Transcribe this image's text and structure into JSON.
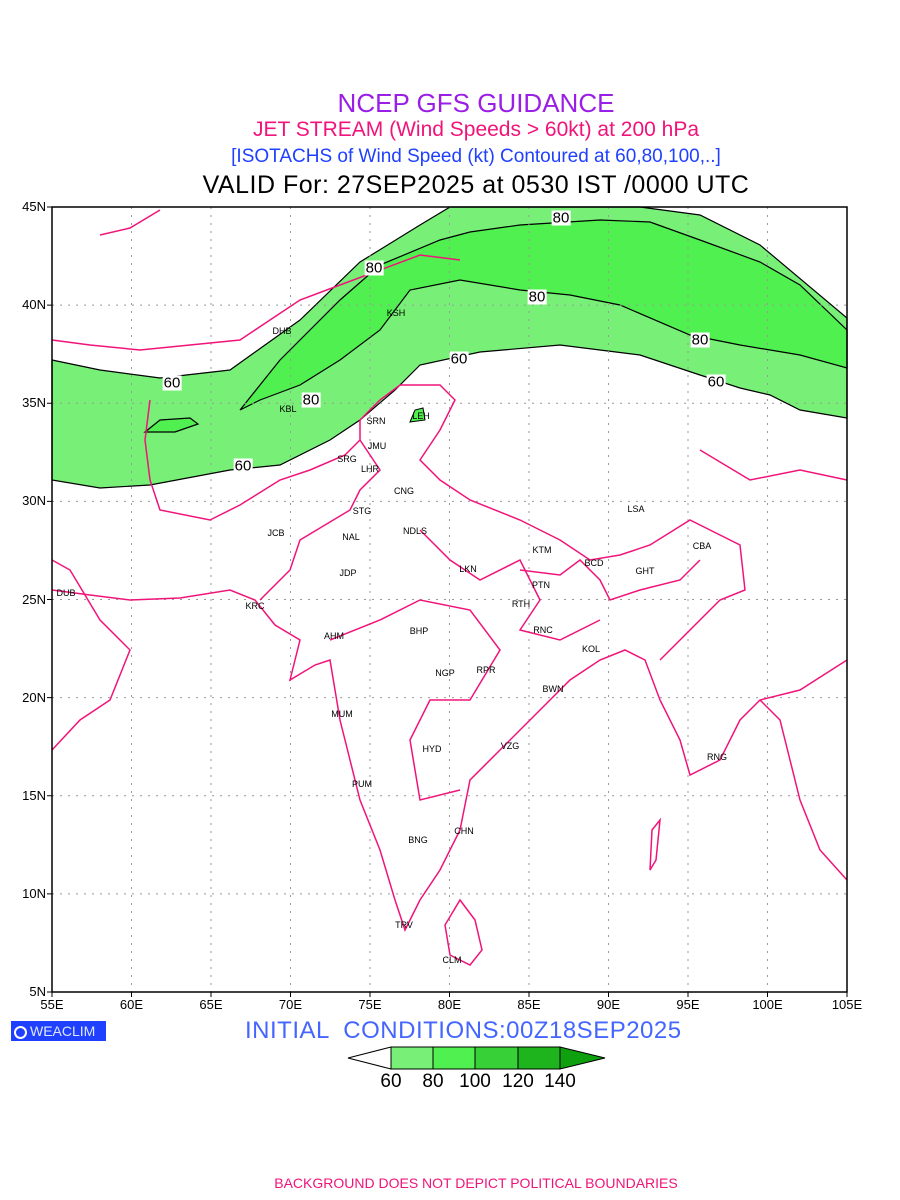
{
  "titles": {
    "line1": "NCEP GFS GUIDANCE",
    "line2": "JET STREAM (Wind Speeds > 60kt) at 200 hPa",
    "line3": "[ISOTACHS of Wind Speed (kt) Contoured at 60,80,100,..]",
    "line4": "VALID For: 27SEP2025 at 0530 IST /0000 UTC"
  },
  "axes": {
    "lat": [
      "45N",
      "40N",
      "35N",
      "30N",
      "25N",
      "20N",
      "15N",
      "10N",
      "5N"
    ],
    "lon": [
      "55E",
      "60E",
      "65E",
      "70E",
      "75E",
      "80E",
      "85E",
      "90E",
      "95E",
      "100E",
      "105E"
    ]
  },
  "contour_labels": [
    "80",
    "80",
    "80",
    "80",
    "60",
    "60",
    "60",
    "80",
    "60"
  ],
  "cities": [
    "DHB",
    "KSH",
    "KBL",
    "SRN",
    "LEH",
    "JMU",
    "SRG",
    "LHR",
    "CNG",
    "STG",
    "JCB",
    "NAL",
    "NDLS",
    "JDP",
    "LKN",
    "KTM",
    "BCD",
    "GHT",
    "CBA",
    "LSA",
    "PTN",
    "RTH",
    "DUB",
    "KRC",
    "RNC",
    "KOL",
    "AHM",
    "BHP",
    "NGP",
    "RPR",
    "BWN",
    "MUM",
    "HYD",
    "VZG",
    "RNG",
    "PUM",
    "CHN",
    "BNG",
    "TRV",
    "CLM"
  ],
  "logo": "WEACLIM",
  "initial_conditions": "INITIAL  CONDITIONS:00Z18SEP2025",
  "legend": {
    "levels": [
      "60",
      "80",
      "100",
      "120",
      "140"
    ],
    "colors": [
      "#ffffff",
      "#78f078",
      "#50f050",
      "#37d137",
      "#1eb41e",
      "#0fa00f"
    ]
  },
  "footer": "BACKGROUND DOES NOT DEPICT POLITICAL BOUNDARIES",
  "colors": {
    "border": "#f0147a",
    "title": "#9b1ee6"
  }
}
